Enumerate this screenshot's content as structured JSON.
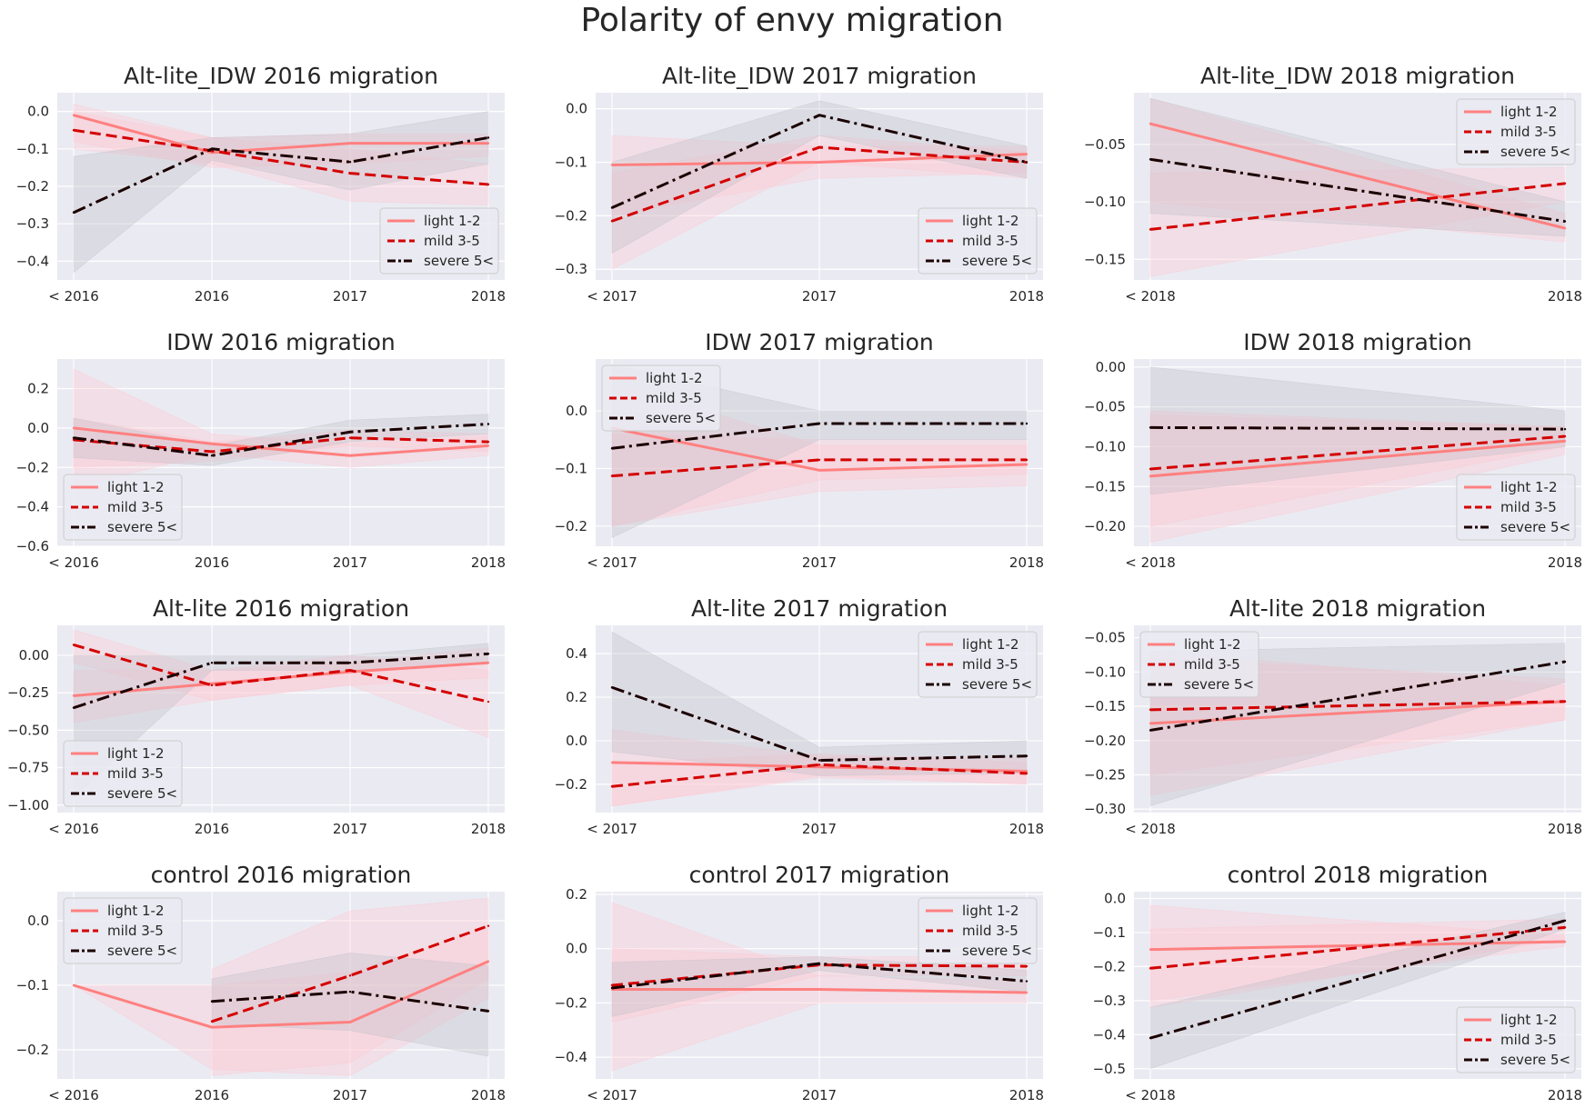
{
  "figure_title": "Polarity of envy migration",
  "series_styles": [
    {
      "color": "#ff8080",
      "dash": "",
      "band": "#ffc8d2"
    },
    {
      "color": "#d40000",
      "dash": "12 6",
      "band": "#ffc8d2"
    },
    {
      "color": "#1a0000",
      "dash": "14 5 3 5",
      "band": "#c0c0c8"
    }
  ],
  "chart_data": [
    {
      "type": "line",
      "title": "Alt-lite_IDW 2016 migration",
      "categories": [
        "< 2016",
        "2016",
        "2017",
        "2018"
      ],
      "ylim": [
        -0.45,
        0.05
      ],
      "yticks": [
        0.0,
        -0.1,
        -0.2,
        -0.3,
        -0.4
      ],
      "ytick_labels": [
        "0.0",
        "−0.1",
        "−0.2",
        "−0.3",
        "−0.4"
      ],
      "grid": true,
      "legend": "bottom-right",
      "series": [
        {
          "name": "light 1-2",
          "values": [
            -0.01,
            -0.11,
            -0.085,
            -0.085
          ],
          "lower": [
            -0.08,
            -0.15,
            -0.14,
            -0.12
          ],
          "upper": [
            0.02,
            -0.07,
            -0.06,
            -0.06
          ]
        },
        {
          "name": "mild 3-5",
          "values": [
            -0.05,
            -0.105,
            -0.165,
            -0.195
          ],
          "lower": [
            -0.1,
            -0.14,
            -0.24,
            -0.25
          ],
          "upper": [
            0.0,
            -0.07,
            -0.1,
            -0.14
          ]
        },
        {
          "name": "severe 5<",
          "values": [
            -0.27,
            -0.1,
            -0.135,
            -0.07
          ],
          "lower": [
            -0.43,
            -0.13,
            -0.21,
            -0.14
          ],
          "upper": [
            -0.12,
            -0.07,
            -0.06,
            0.0
          ]
        }
      ]
    },
    {
      "type": "line",
      "title": "Alt-lite_IDW 2017 migration",
      "categories": [
        "< 2017",
        "2017",
        "2018"
      ],
      "ylim": [
        -0.32,
        0.03
      ],
      "yticks": [
        0.0,
        -0.1,
        -0.2,
        -0.3
      ],
      "ytick_labels": [
        "0.0",
        "−0.1",
        "−0.2",
        "−0.3"
      ],
      "grid": true,
      "legend": "bottom-right",
      "series": [
        {
          "name": "light 1-2",
          "values": [
            -0.105,
            -0.1,
            -0.085
          ],
          "lower": [
            -0.2,
            -0.13,
            -0.12
          ],
          "upper": [
            -0.05,
            -0.07,
            -0.07
          ]
        },
        {
          "name": "mild 3-5",
          "values": [
            -0.21,
            -0.072,
            -0.1
          ],
          "lower": [
            -0.3,
            -0.1,
            -0.13
          ],
          "upper": [
            -0.12,
            -0.05,
            -0.08
          ]
        },
        {
          "name": "severe 5<",
          "values": [
            -0.185,
            -0.012,
            -0.1
          ],
          "lower": [
            -0.27,
            -0.05,
            -0.13
          ],
          "upper": [
            -0.1,
            0.015,
            -0.07
          ]
        }
      ]
    },
    {
      "type": "line",
      "title": "Alt-lite_IDW 2018 migration",
      "categories": [
        "< 2018",
        "2018"
      ],
      "ylim": [
        -0.168,
        -0.005
      ],
      "yticks": [
        -0.05,
        -0.1,
        -0.15
      ],
      "ytick_labels": [
        "−0.05",
        "−0.10",
        "−0.15"
      ],
      "grid": true,
      "legend": "top-right",
      "series": [
        {
          "name": "light 1-2",
          "values": [
            -0.032,
            -0.123
          ],
          "lower": [
            -0.1,
            -0.135
          ],
          "upper": [
            -0.01,
            -0.11
          ]
        },
        {
          "name": "mild 3-5",
          "values": [
            -0.124,
            -0.084
          ],
          "lower": [
            -0.165,
            -0.1
          ],
          "upper": [
            -0.075,
            -0.07
          ]
        },
        {
          "name": "severe 5<",
          "values": [
            -0.063,
            -0.117
          ],
          "lower": [
            -0.11,
            -0.13
          ],
          "upper": [
            -0.01,
            -0.1
          ]
        }
      ]
    },
    {
      "type": "line",
      "title": "IDW 2016 migration",
      "categories": [
        "< 2016",
        "2016",
        "2017",
        "2018"
      ],
      "ylim": [
        -0.6,
        0.35
      ],
      "yticks": [
        0.2,
        0.0,
        -0.2,
        -0.4,
        -0.6
      ],
      "ytick_labels": [
        "0.2",
        "0.0",
        "−0.2",
        "−0.4",
        "−0.6"
      ],
      "grid": true,
      "legend": "bottom-left",
      "series": [
        {
          "name": "light 1-2",
          "values": [
            0.0,
            -0.08,
            -0.14,
            -0.09
          ],
          "lower": [
            -0.3,
            -0.13,
            -0.2,
            -0.14
          ],
          "upper": [
            0.3,
            -0.03,
            -0.08,
            -0.04
          ]
        },
        {
          "name": "mild 3-5",
          "values": [
            -0.06,
            -0.12,
            -0.05,
            -0.07
          ],
          "lower": [
            -0.2,
            -0.17,
            -0.09,
            -0.12
          ],
          "upper": [
            0.05,
            -0.07,
            -0.01,
            -0.03
          ]
        },
        {
          "name": "severe 5<",
          "values": [
            -0.05,
            -0.14,
            -0.02,
            0.02
          ],
          "lower": [
            -0.15,
            -0.19,
            -0.07,
            -0.03
          ],
          "upper": [
            0.05,
            -0.09,
            0.04,
            0.07
          ]
        }
      ]
    },
    {
      "type": "line",
      "title": "IDW 2017 migration",
      "categories": [
        "< 2017",
        "2017",
        "2018"
      ],
      "ylim": [
        -0.235,
        0.09
      ],
      "yticks": [
        0.0,
        -0.1,
        -0.2
      ],
      "ytick_labels": [
        "0.0",
        "−0.1",
        "−0.2"
      ],
      "grid": true,
      "legend": "top-left",
      "series": [
        {
          "name": "light 1-2",
          "values": [
            -0.03,
            -0.103,
            -0.093
          ],
          "lower": [
            -0.2,
            -0.14,
            -0.13
          ],
          "upper": [
            0.05,
            -0.06,
            -0.06
          ]
        },
        {
          "name": "mild 3-5",
          "values": [
            -0.113,
            -0.085,
            -0.085
          ],
          "lower": [
            -0.2,
            -0.12,
            -0.11
          ],
          "upper": [
            -0.04,
            -0.05,
            -0.05
          ]
        },
        {
          "name": "severe 5<",
          "values": [
            -0.065,
            -0.022,
            -0.022
          ],
          "lower": [
            -0.22,
            -0.05,
            -0.05
          ],
          "upper": [
            0.08,
            0.0,
            0.0
          ]
        }
      ]
    },
    {
      "type": "line",
      "title": "IDW 2018 migration",
      "categories": [
        "< 2018",
        "2018"
      ],
      "ylim": [
        -0.225,
        0.01
      ],
      "yticks": [
        0.0,
        -0.05,
        -0.1,
        -0.15,
        -0.2
      ],
      "ytick_labels": [
        "0.00",
        "−0.05",
        "−0.10",
        "−0.15",
        "−0.20"
      ],
      "grid": true,
      "legend": "bottom-right",
      "series": [
        {
          "name": "light 1-2",
          "values": [
            -0.137,
            -0.093
          ],
          "lower": [
            -0.22,
            -0.11
          ],
          "upper": [
            -0.06,
            -0.075
          ]
        },
        {
          "name": "mild 3-5",
          "values": [
            -0.128,
            -0.087
          ],
          "lower": [
            -0.2,
            -0.1
          ],
          "upper": [
            -0.055,
            -0.075
          ]
        },
        {
          "name": "severe 5<",
          "values": [
            -0.076,
            -0.078
          ],
          "lower": [
            -0.16,
            -0.1
          ],
          "upper": [
            0.0,
            -0.055
          ]
        }
      ]
    },
    {
      "type": "line",
      "title": "Alt-lite 2016 migration",
      "categories": [
        "< 2016",
        "2016",
        "2017",
        "2018"
      ],
      "ylim": [
        -1.05,
        0.2
      ],
      "yticks": [
        0.0,
        -0.25,
        -0.5,
        -0.75,
        -1.0
      ],
      "ytick_labels": [
        "0.00",
        "−0.25",
        "−0.50",
        "−0.75",
        "−1.00"
      ],
      "grid": true,
      "legend": "bottom-left",
      "series": [
        {
          "name": "light 1-2",
          "values": [
            -0.27,
            -0.19,
            -0.11,
            -0.05
          ],
          "lower": [
            -0.45,
            -0.3,
            -0.2,
            -0.15
          ],
          "upper": [
            -0.1,
            -0.1,
            -0.05,
            0.05
          ]
        },
        {
          "name": "mild 3-5",
          "values": [
            0.07,
            -0.2,
            -0.1,
            -0.31
          ],
          "lower": [
            -0.05,
            -0.3,
            -0.2,
            -0.55
          ],
          "upper": [
            0.17,
            -0.1,
            0.0,
            -0.1
          ]
        },
        {
          "name": "severe 5<",
          "values": [
            -0.35,
            -0.05,
            -0.05,
            0.01
          ],
          "lower": [
            -0.95,
            -0.1,
            -0.1,
            -0.05
          ],
          "upper": [
            0.0,
            0.0,
            0.0,
            0.08
          ]
        }
      ]
    },
    {
      "type": "line",
      "title": "Alt-lite 2017 migration",
      "categories": [
        "< 2017",
        "2017",
        "2018"
      ],
      "ylim": [
        -0.33,
        0.53
      ],
      "yticks": [
        0.4,
        0.2,
        0.0,
        -0.2
      ],
      "ytick_labels": [
        "0.4",
        "0.2",
        "0.0",
        "−0.2"
      ],
      "grid": true,
      "legend": "top-right",
      "series": [
        {
          "name": "light 1-2",
          "values": [
            -0.1,
            -0.12,
            -0.14
          ],
          "lower": [
            -0.3,
            -0.17,
            -0.2
          ],
          "upper": [
            0.05,
            -0.07,
            -0.08
          ]
        },
        {
          "name": "mild 3-5",
          "values": [
            -0.21,
            -0.11,
            -0.15
          ],
          "lower": [
            -0.3,
            -0.16,
            -0.2
          ],
          "upper": [
            -0.1,
            -0.06,
            -0.1
          ]
        },
        {
          "name": "severe 5<",
          "values": [
            0.245,
            -0.09,
            -0.07
          ],
          "lower": [
            -0.05,
            -0.16,
            -0.15
          ],
          "upper": [
            0.5,
            -0.03,
            0.0
          ]
        }
      ]
    },
    {
      "type": "line",
      "title": "Alt-lite 2018 migration",
      "categories": [
        "< 2018",
        "2018"
      ],
      "ylim": [
        -0.305,
        -0.032
      ],
      "yticks": [
        -0.05,
        -0.1,
        -0.15,
        -0.2,
        -0.25,
        -0.3
      ],
      "ytick_labels": [
        "−0.05",
        "−0.10",
        "−0.15",
        "−0.20",
        "−0.25",
        "−0.30"
      ],
      "grid": true,
      "legend": "top-left",
      "series": [
        {
          "name": "light 1-2",
          "values": [
            -0.175,
            -0.143
          ],
          "lower": [
            -0.28,
            -0.17
          ],
          "upper": [
            -0.08,
            -0.11
          ]
        },
        {
          "name": "mild 3-5",
          "values": [
            -0.155,
            -0.143
          ],
          "lower": [
            -0.25,
            -0.17
          ],
          "upper": [
            -0.07,
            -0.12
          ]
        },
        {
          "name": "severe 5<",
          "values": [
            -0.185,
            -0.085
          ],
          "lower": [
            -0.295,
            -0.115
          ],
          "upper": [
            -0.07,
            -0.058
          ]
        }
      ]
    },
    {
      "type": "line",
      "title": "control 2016 migration",
      "categories": [
        "< 2016",
        "2016",
        "2017",
        "2018"
      ],
      "ylim": [
        -0.245,
        0.045
      ],
      "yticks": [
        0.0,
        -0.1,
        -0.2
      ],
      "ytick_labels": [
        "0.0",
        "−0.1",
        "−0.2"
      ],
      "grid": true,
      "legend": "top-left",
      "series": [
        {
          "name": "light 1-2",
          "values": [
            -0.1,
            -0.165,
            -0.157,
            -0.063
          ],
          "lower": [
            -0.1,
            -0.23,
            -0.24,
            -0.12
          ],
          "upper": [
            -0.1,
            -0.1,
            -0.08,
            -0.01
          ]
        },
        {
          "name": "mild 3-5",
          "values": [
            null,
            -0.156,
            -0.085,
            -0.008
          ],
          "lower": [
            null,
            -0.24,
            -0.22,
            -0.09
          ],
          "upper": [
            null,
            -0.075,
            0.015,
            0.035
          ]
        },
        {
          "name": "severe 5<",
          "values": [
            null,
            -0.125,
            -0.11,
            -0.14
          ],
          "lower": [
            null,
            -0.16,
            -0.17,
            -0.21
          ],
          "upper": [
            null,
            -0.09,
            -0.05,
            -0.07
          ]
        }
      ]
    },
    {
      "type": "line",
      "title": "control 2017 migration",
      "categories": [
        "< 2017",
        "2017",
        "2018"
      ],
      "ylim": [
        -0.48,
        0.21
      ],
      "yticks": [
        0.2,
        0.0,
        -0.2,
        -0.4
      ],
      "ytick_labels": [
        "0.2",
        "0.0",
        "−0.2",
        "−0.4"
      ],
      "grid": true,
      "legend": "top-right",
      "series": [
        {
          "name": "light 1-2",
          "values": [
            -0.15,
            -0.15,
            -0.162
          ],
          "lower": [
            -0.45,
            -0.2,
            -0.2
          ],
          "upper": [
            0.17,
            -0.1,
            -0.12
          ]
        },
        {
          "name": "mild 3-5",
          "values": [
            -0.135,
            -0.06,
            -0.065
          ],
          "lower": [
            -0.27,
            -0.1,
            -0.1
          ],
          "upper": [
            0.0,
            -0.03,
            -0.03
          ]
        },
        {
          "name": "severe 5<",
          "values": [
            -0.145,
            -0.055,
            -0.12
          ],
          "lower": [
            -0.25,
            -0.08,
            -0.16
          ],
          "upper": [
            -0.05,
            -0.03,
            -0.08
          ]
        }
      ]
    },
    {
      "type": "line",
      "title": "control 2018 migration",
      "categories": [
        "< 2018",
        "2018"
      ],
      "ylim": [
        -0.53,
        0.02
      ],
      "yticks": [
        0.0,
        -0.1,
        -0.2,
        -0.3,
        -0.4,
        -0.5
      ],
      "ytick_labels": [
        "0.0",
        "−0.1",
        "−0.2",
        "−0.3",
        "−0.4",
        "−0.5"
      ],
      "grid": true,
      "legend": "bottom-right",
      "series": [
        {
          "name": "light 1-2",
          "values": [
            -0.15,
            -0.127
          ],
          "lower": [
            -0.3,
            -0.14
          ],
          "upper": [
            -0.02,
            -0.11
          ]
        },
        {
          "name": "mild 3-5",
          "values": [
            -0.205,
            -0.085
          ],
          "lower": [
            -0.32,
            -0.12
          ],
          "upper": [
            -0.09,
            -0.06
          ]
        },
        {
          "name": "severe 5<",
          "values": [
            -0.41,
            -0.065
          ],
          "lower": [
            -0.5,
            -0.09
          ],
          "upper": [
            -0.32,
            -0.04
          ]
        }
      ]
    }
  ]
}
